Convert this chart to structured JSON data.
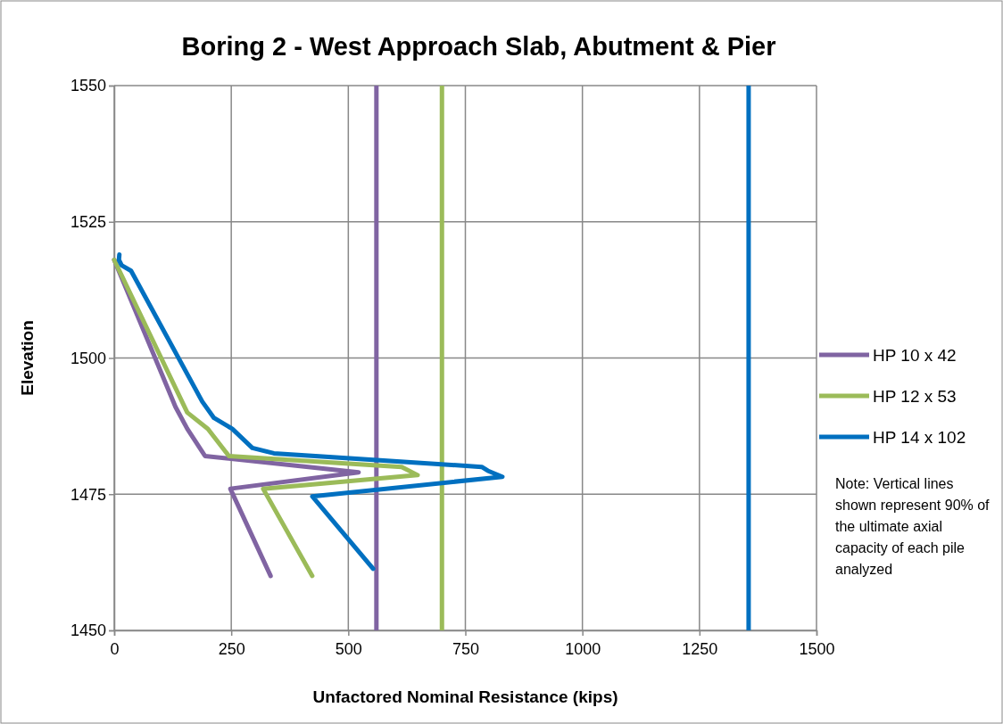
{
  "chart_data": {
    "type": "line",
    "title": "Boring 2 - West Approach Slab, Abutment & Pier",
    "xlabel": "Unfactored Nominal Resistance (kips)",
    "ylabel": "Elevation",
    "xlim": [
      0,
      1500
    ],
    "xticks": [
      0,
      250,
      500,
      750,
      1000,
      1250,
      1500
    ],
    "ylim": [
      1450,
      1550
    ],
    "yticks": [
      1450,
      1475,
      1500,
      1525,
      1550
    ],
    "grid": true,
    "legend": "right",
    "marker": "none",
    "line_style": "solid",
    "series": [
      {
        "name": "HP 10 x 42",
        "color": "#8064a2",
        "x": [
          0,
          131,
          156,
          194,
          522,
          248,
          334
        ],
        "values": [
          1518,
          1491,
          1487,
          1482,
          1479,
          1476,
          1460
        ]
      },
      {
        "name": "HP 12 x 53",
        "color": "#9bbb59",
        "x": [
          0,
          156,
          200,
          245,
          614,
          648,
          318,
          423
        ],
        "values": [
          1518,
          1490,
          1487,
          1482,
          1480,
          1478.5,
          1476,
          1460
        ]
      },
      {
        "name": "HP 14 x 102",
        "color": "#0070c0",
        "x": [
          11,
          10,
          16,
          36,
          188,
          213,
          252,
          295,
          341,
          785,
          798,
          829,
          423,
          553
        ],
        "values": [
          1519,
          1518,
          1517,
          1516,
          1492,
          1489,
          1487,
          1483.5,
          1482.5,
          1480,
          1479.3,
          1478.2,
          1474.6,
          1461.3
        ]
      }
    ],
    "ref_lines": [
      {
        "axis": "x",
        "value": 560,
        "color": "#8064a2"
      },
      {
        "axis": "x",
        "value": 700,
        "color": "#9bbb59"
      },
      {
        "axis": "x",
        "value": 1355,
        "color": "#0070c0"
      }
    ],
    "annotations": [
      "Note:  Vertical lines shown represent 90% of the ultimate axial capacity of each pile analyzed"
    ]
  }
}
